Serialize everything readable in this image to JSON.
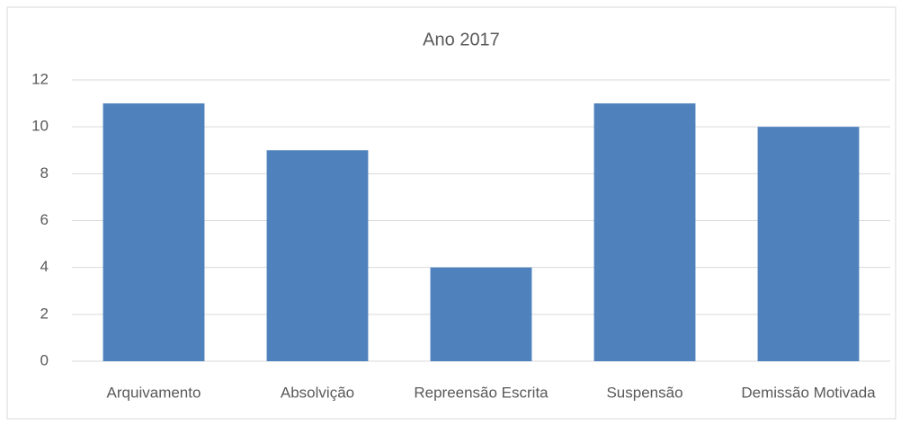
{
  "chart_data": {
    "type": "bar",
    "title": "Ano 2017",
    "categories": [
      "Arquivamento",
      "Absolvição",
      "Repreensão Escrita",
      "Suspensão",
      "Demissão Motivada"
    ],
    "values": [
      11,
      9,
      4,
      11,
      10
    ],
    "color": "#4f81bd",
    "ylim": [
      0,
      12
    ],
    "yticks": [
      0,
      2,
      4,
      6,
      8,
      10,
      12
    ],
    "grid": true
  }
}
